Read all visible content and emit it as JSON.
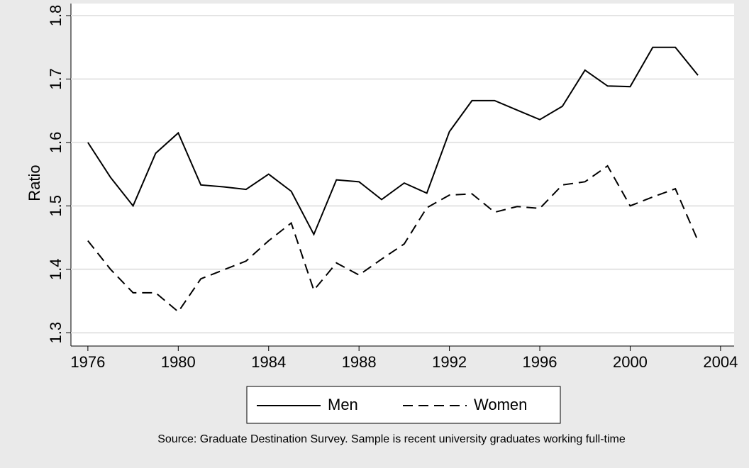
{
  "chart_data": {
    "type": "line",
    "y_label": "Ratio",
    "note": "Source: Graduate Destination Survey. Sample is recent university graduates working full-time",
    "x": [
      1976,
      1977,
      1978,
      1979,
      1980,
      1981,
      1982,
      1983,
      1984,
      1985,
      1986,
      1987,
      1988,
      1989,
      1990,
      1991,
      1992,
      1993,
      1994,
      1995,
      1996,
      1997,
      1998,
      1999,
      2000,
      2001,
      2002,
      2003
    ],
    "series": [
      {
        "name": "Men",
        "color": "#000000",
        "dash": "solid",
        "values": [
          1.6,
          1.545,
          1.5,
          1.583,
          1.615,
          1.533,
          1.53,
          1.526,
          1.55,
          1.523,
          1.455,
          1.541,
          1.538,
          1.51,
          1.536,
          1.52,
          1.617,
          1.666,
          1.666,
          1.651,
          1.636,
          1.657,
          1.714,
          1.689,
          1.688,
          1.75,
          1.75,
          1.706
        ]
      },
      {
        "name": "Women",
        "color": "#000000",
        "dash": "dashed",
        "values": [
          1.445,
          1.4,
          1.363,
          1.363,
          1.333,
          1.385,
          1.399,
          1.413,
          1.445,
          1.473,
          1.367,
          1.41,
          1.391,
          1.416,
          1.44,
          1.497,
          1.517,
          1.519,
          1.49,
          1.499,
          1.496,
          1.533,
          1.538,
          1.563,
          1.5,
          1.514,
          1.527,
          1.445
        ]
      }
    ],
    "xlim": [
      1975.25,
      2004.6
    ],
    "xticks": [
      1976,
      1980,
      1984,
      1988,
      1992,
      1996,
      2000,
      2004
    ],
    "ylim": [
      1.279,
      1.819
    ],
    "yticks": [
      1.3,
      1.4,
      1.5,
      1.6,
      1.7,
      1.8
    ],
    "grid": true,
    "legend": "bottom"
  }
}
